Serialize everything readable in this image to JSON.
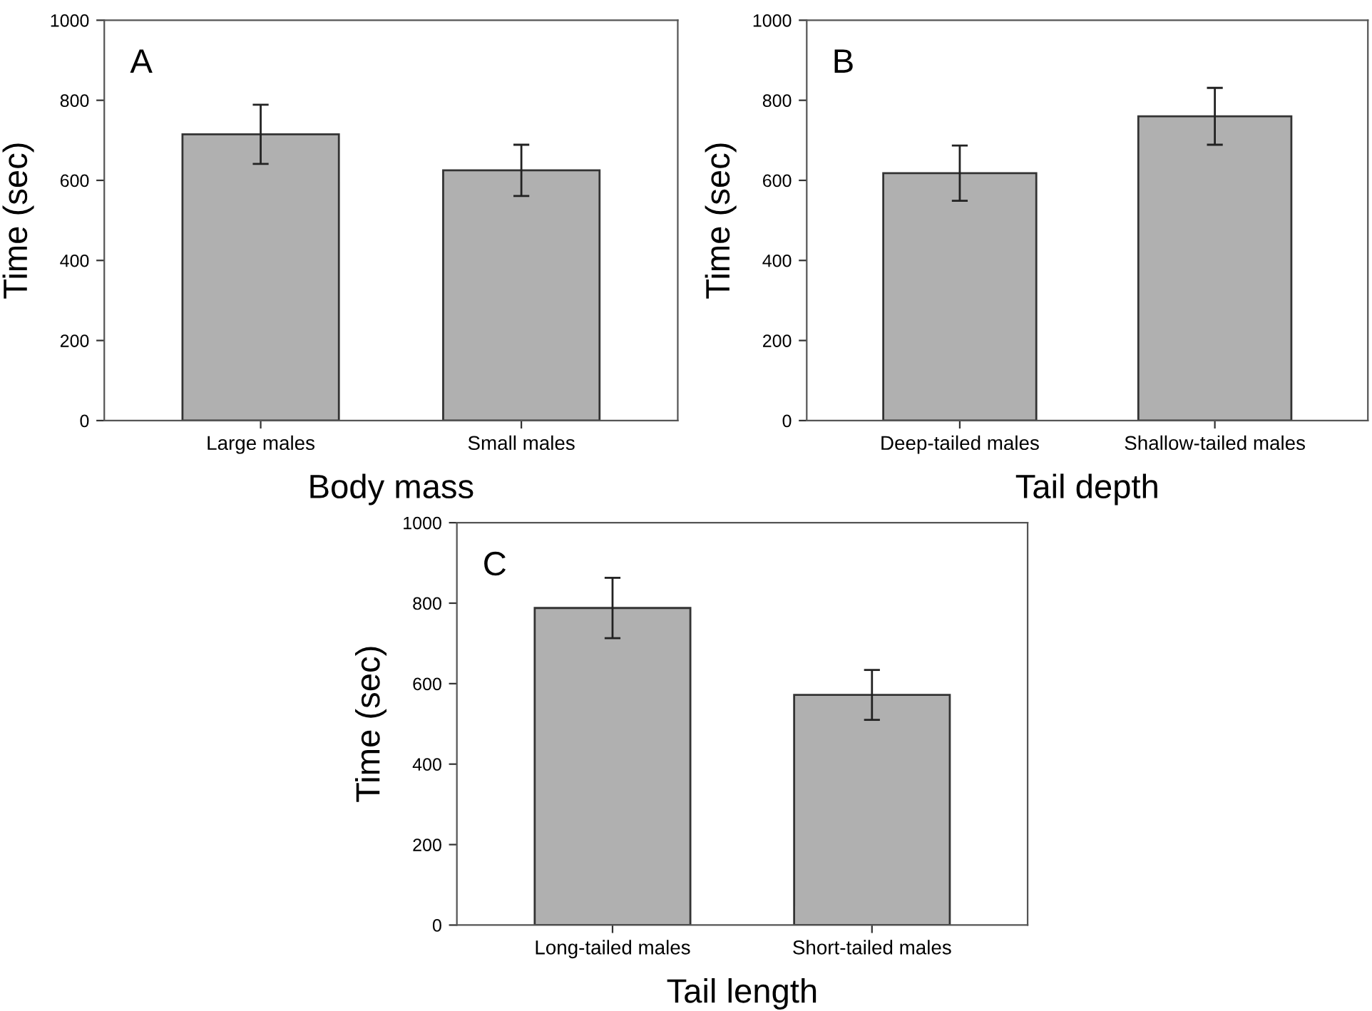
{
  "chart_data": [
    {
      "type": "bar",
      "title": "A",
      "xlabel": "Body mass",
      "ylabel": "Time (sec)",
      "categories": [
        "Large males",
        "Small males"
      ],
      "values": [
        715,
        625
      ],
      "errors": [
        74,
        64
      ],
      "color": "#b0b0b0",
      "ylim": [
        0,
        1000
      ],
      "yticks": [
        0,
        200,
        400,
        600,
        800,
        1000
      ],
      "grid": false
    },
    {
      "type": "bar",
      "title": "B",
      "xlabel": "Tail depth",
      "ylabel": "Time (sec)",
      "categories": [
        "Deep-tailed males",
        "Shallow-tailed males"
      ],
      "values": [
        618,
        760
      ],
      "errors": [
        69,
        71
      ],
      "color": "#b0b0b0",
      "ylim": [
        0,
        1000
      ],
      "yticks": [
        0,
        200,
        400,
        600,
        800,
        1000
      ],
      "grid": false
    },
    {
      "type": "bar",
      "title": "C",
      "xlabel": "Tail length",
      "ylabel": "Time (sec)",
      "categories": [
        "Long-tailed males",
        "Short-tailed males"
      ],
      "values": [
        788,
        572
      ],
      "errors": [
        75,
        62
      ],
      "color": "#b0b0b0",
      "ylim": [
        0,
        1000
      ],
      "yticks": [
        0,
        200,
        400,
        600,
        800,
        1000
      ],
      "grid": false
    }
  ]
}
